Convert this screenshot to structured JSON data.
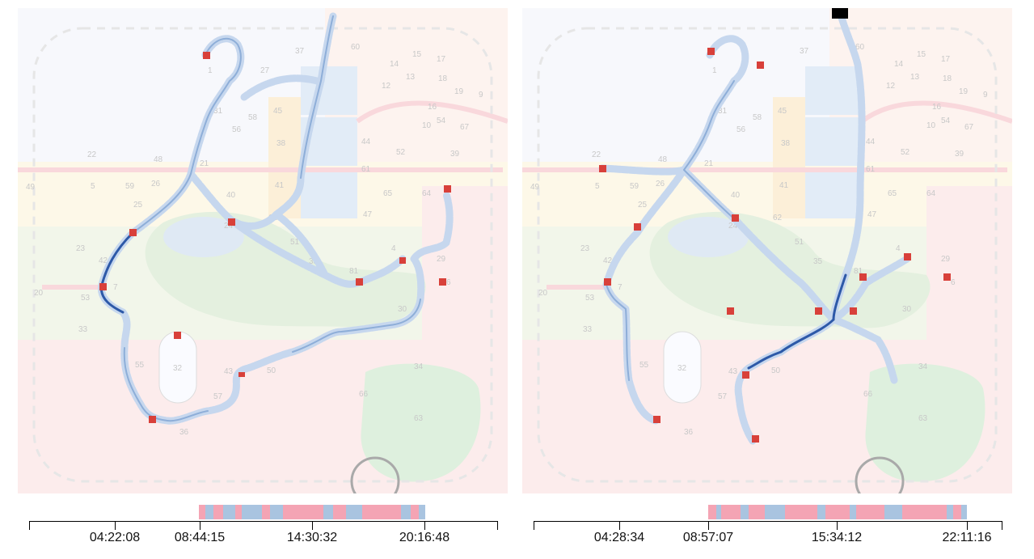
{
  "colors": {
    "path_light": "#c6d7ee",
    "path_mid": "#8eaed8",
    "path_dark": "#2d59a8",
    "stop": "#d8403a",
    "bar_pink": "#f4a4b4",
    "bar_blue": "#a9c4e0",
    "start_marker": "#000000",
    "zone_white": "#f7f8fc",
    "zone_yellow": "#fdf8e8",
    "zone_green": "#f2f6ea",
    "zone_pink": "#fcecec"
  },
  "map_labels": [
    "1",
    "4",
    "5",
    "6",
    "7",
    "9",
    "10",
    "12",
    "13",
    "14",
    "15",
    "16",
    "17",
    "18",
    "19",
    "20",
    "21",
    "22",
    "23",
    "24",
    "25",
    "26",
    "27",
    "29",
    "30",
    "31",
    "32",
    "33",
    "34",
    "35",
    "36",
    "37",
    "38",
    "39",
    "40",
    "41",
    "42",
    "43",
    "44",
    "45",
    "47",
    "48",
    "49",
    "50",
    "51",
    "52",
    "53",
    "54",
    "55",
    "56",
    "57",
    "58",
    "59",
    "60",
    "61",
    "62",
    "63",
    "64",
    "65",
    "66",
    "67"
  ],
  "left_panel": {
    "timeline": {
      "ticks": [
        "04:22:08",
        "08:44:15",
        "14:30:32",
        "20:16:48"
      ]
    }
  },
  "right_panel": {
    "timeline": {
      "ticks": [
        "04:28:34",
        "08:57:07",
        "15:34:12",
        "22:11:16"
      ]
    }
  }
}
